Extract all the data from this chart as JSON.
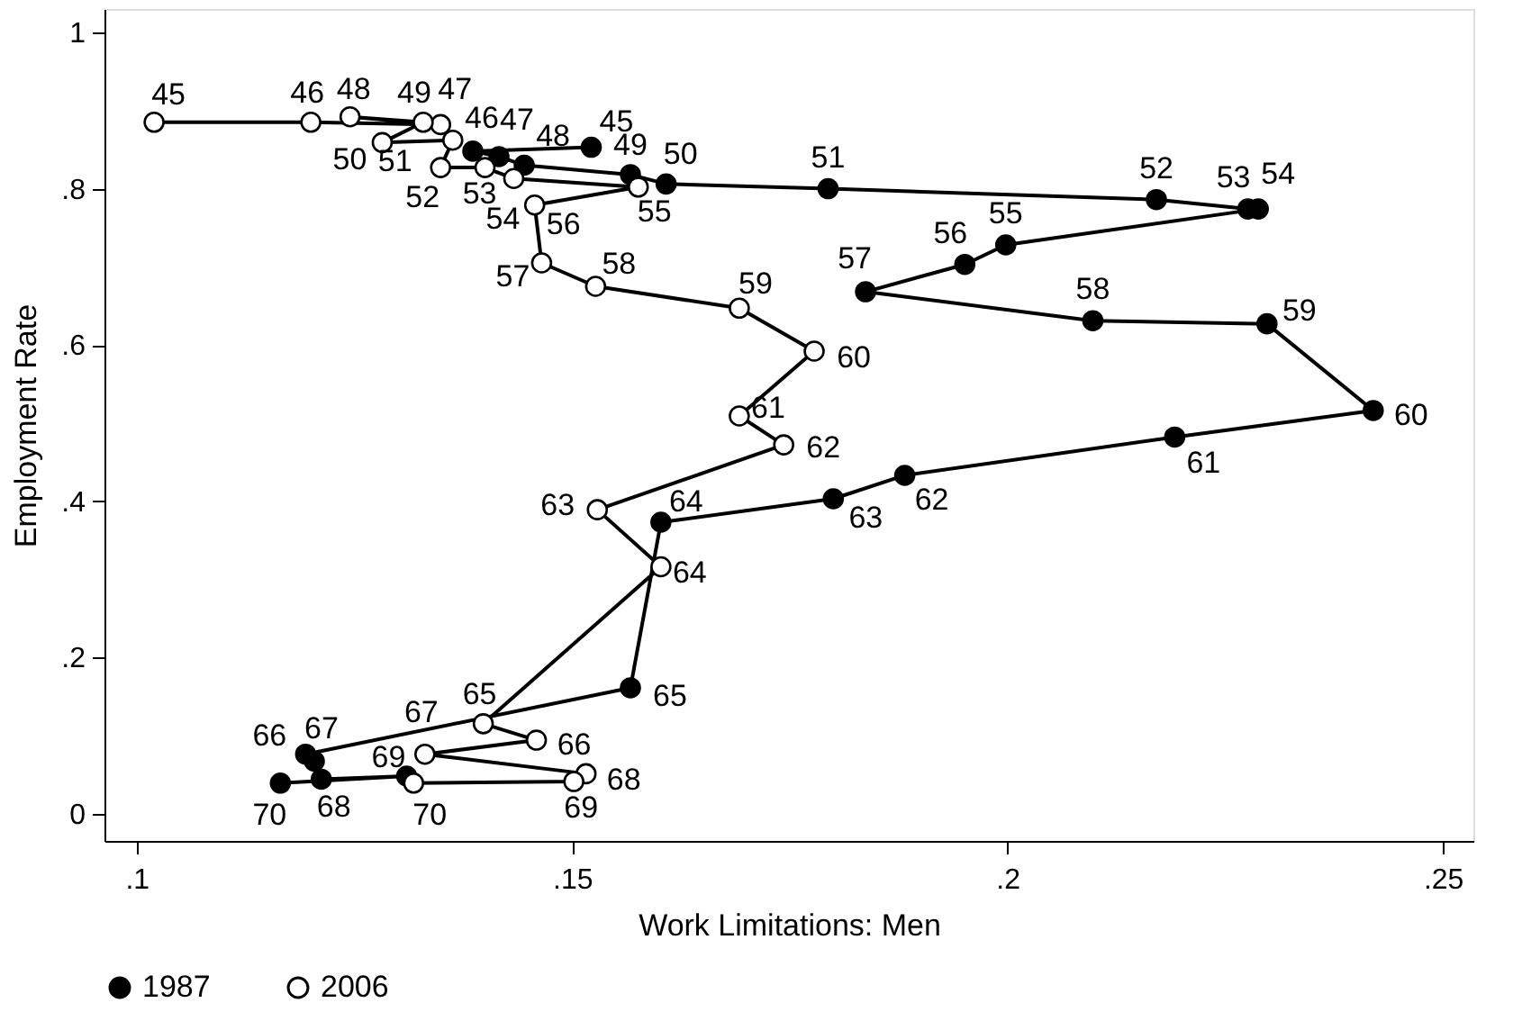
{
  "chart_data": {
    "type": "line",
    "xlabel": "Work Limitations: Men",
    "ylabel": "Employment Rate",
    "xlim": [
      0.0963,
      0.2535
    ],
    "ylim": [
      -0.035,
      1.03
    ],
    "xticks": [
      {
        "value": 0.1,
        "label": ".1"
      },
      {
        "value": 0.15,
        "label": ".15"
      },
      {
        "value": 0.2,
        "label": ".2"
      },
      {
        "value": 0.25,
        "label": ".25"
      }
    ],
    "yticks": [
      {
        "value": 0,
        "label": "0"
      },
      {
        "value": 0.2,
        "label": ".2"
      },
      {
        "value": 0.4,
        "label": ".4"
      },
      {
        "value": 0.6,
        "label": ".6"
      },
      {
        "value": 0.8,
        "label": ".8"
      },
      {
        "value": 1,
        "label": "1"
      }
    ],
    "grid": false,
    "legend": "bottom",
    "marker": "circle",
    "line_style": "solid",
    "series": [
      {
        "name": "1987",
        "color": "#000000",
        "x": [
          0.1522,
          0.1386,
          0.1416,
          0.1445,
          0.1567,
          0.1608,
          0.1794,
          0.2171,
          0.2276,
          0.2288,
          0.1998,
          0.1951,
          0.1837,
          0.2098,
          0.2298,
          0.242,
          0.2192,
          0.1882,
          0.18,
          0.1602,
          0.1567,
          0.1194,
          0.1204,
          0.1212,
          0.131,
          0.1165
        ],
        "values": [
          0.853,
          0.848,
          0.841,
          0.83,
          0.818,
          0.806,
          0.8,
          0.786,
          0.774,
          0.774,
          0.728,
          0.703,
          0.668,
          0.631,
          0.627,
          0.516,
          0.482,
          0.433,
          0.403,
          0.373,
          0.161,
          0.076,
          0.067,
          0.044,
          0.048,
          0.039
        ]
      },
      {
        "name": "2006",
        "color": "#000000",
        "x": [
          0.102,
          0.12,
          0.1349,
          0.1245,
          0.1329,
          0.1282,
          0.1363,
          0.1349,
          0.14,
          0.1433,
          0.1576,
          0.1457,
          0.1465,
          0.1527,
          0.1692,
          0.1778,
          0.1692,
          0.1743,
          0.1529,
          0.1602,
          0.1398,
          0.1459,
          0.1331,
          0.1516,
          0.1502,
          0.1318
        ],
        "values": [
          0.885,
          0.885,
          0.882,
          0.892,
          0.885,
          0.859,
          0.862,
          0.827,
          0.827,
          0.813,
          0.802,
          0.779,
          0.705,
          0.675,
          0.647,
          0.592,
          0.509,
          0.472,
          0.389,
          0.316,
          0.115,
          0.094,
          0.076,
          0.051,
          0.041,
          0.039
        ]
      }
    ],
    "annotations": [
      {
        "text": "45",
        "x": 0.1522,
        "y": 0.853
      },
      {
        "text": "46",
        "x": 0.1386,
        "y": 0.848
      },
      {
        "text": "47",
        "x": 0.1416,
        "y": 0.841
      },
      {
        "text": "48",
        "x": 0.1445,
        "y": 0.83
      },
      {
        "text": "49",
        "x": 0.1567,
        "y": 0.818
      },
      {
        "text": "50",
        "x": 0.1608,
        "y": 0.806
      },
      {
        "text": "51",
        "x": 0.1794,
        "y": 0.8
      },
      {
        "text": "52",
        "x": 0.2171,
        "y": 0.786
      },
      {
        "text": "53",
        "x": 0.2276,
        "y": 0.774
      },
      {
        "text": "54",
        "x": 0.2288,
        "y": 0.774
      },
      {
        "text": "55",
        "x": 0.1998,
        "y": 0.728
      },
      {
        "text": "56",
        "x": 0.1951,
        "y": 0.703
      },
      {
        "text": "57",
        "x": 0.1837,
        "y": 0.668
      },
      {
        "text": "58",
        "x": 0.2098,
        "y": 0.631
      },
      {
        "text": "59",
        "x": 0.2298,
        "y": 0.627
      },
      {
        "text": "60",
        "x": 0.242,
        "y": 0.516
      },
      {
        "text": "61",
        "x": 0.2192,
        "y": 0.482
      },
      {
        "text": "62",
        "x": 0.1882,
        "y": 0.433
      },
      {
        "text": "63",
        "x": 0.18,
        "y": 0.403
      },
      {
        "text": "64",
        "x": 0.1602,
        "y": 0.373
      },
      {
        "text": "65",
        "x": 0.1567,
        "y": 0.161
      },
      {
        "text": "66",
        "x": 0.1194,
        "y": 0.076
      },
      {
        "text": "67",
        "x": 0.1204,
        "y": 0.067
      },
      {
        "text": "68",
        "x": 0.1212,
        "y": 0.044
      },
      {
        "text": "69",
        "x": 0.131,
        "y": 0.048
      },
      {
        "text": "70",
        "x": 0.1165,
        "y": 0.039
      },
      {
        "text": "45",
        "x": 0.102,
        "y": 0.885
      },
      {
        "text": "46",
        "x": 0.12,
        "y": 0.885
      },
      {
        "text": "47",
        "x": 0.1349,
        "y": 0.882
      },
      {
        "text": "48",
        "x": 0.1245,
        "y": 0.892
      },
      {
        "text": "49",
        "x": 0.1329,
        "y": 0.885
      },
      {
        "text": "50",
        "x": 0.1282,
        "y": 0.859
      },
      {
        "text": "51",
        "x": 0.1363,
        "y": 0.862
      },
      {
        "text": "52",
        "x": 0.1349,
        "y": 0.827
      },
      {
        "text": "53",
        "x": 0.14,
        "y": 0.827
      },
      {
        "text": "54",
        "x": 0.1433,
        "y": 0.813
      },
      {
        "text": "55",
        "x": 0.1576,
        "y": 0.802
      },
      {
        "text": "56",
        "x": 0.1457,
        "y": 0.779
      },
      {
        "text": "57",
        "x": 0.1465,
        "y": 0.705
      },
      {
        "text": "58",
        "x": 0.1527,
        "y": 0.675
      },
      {
        "text": "59",
        "x": 0.1692,
        "y": 0.647
      },
      {
        "text": "60",
        "x": 0.1778,
        "y": 0.592
      },
      {
        "text": "61",
        "x": 0.1692,
        "y": 0.509
      },
      {
        "text": "62",
        "x": 0.1743,
        "y": 0.472
      },
      {
        "text": "63",
        "x": 0.1529,
        "y": 0.389
      },
      {
        "text": "64",
        "x": 0.1602,
        "y": 0.316
      },
      {
        "text": "65",
        "x": 0.1398,
        "y": 0.115
      },
      {
        "text": "66",
        "x": 0.1459,
        "y": 0.094
      },
      {
        "text": "67",
        "x": 0.1331,
        "y": 0.076
      },
      {
        "text": "68",
        "x": 0.1516,
        "y": 0.051
      },
      {
        "text": "69",
        "x": 0.1502,
        "y": 0.041
      },
      {
        "text": "70",
        "x": 0.1318,
        "y": 0.039
      }
    ]
  }
}
